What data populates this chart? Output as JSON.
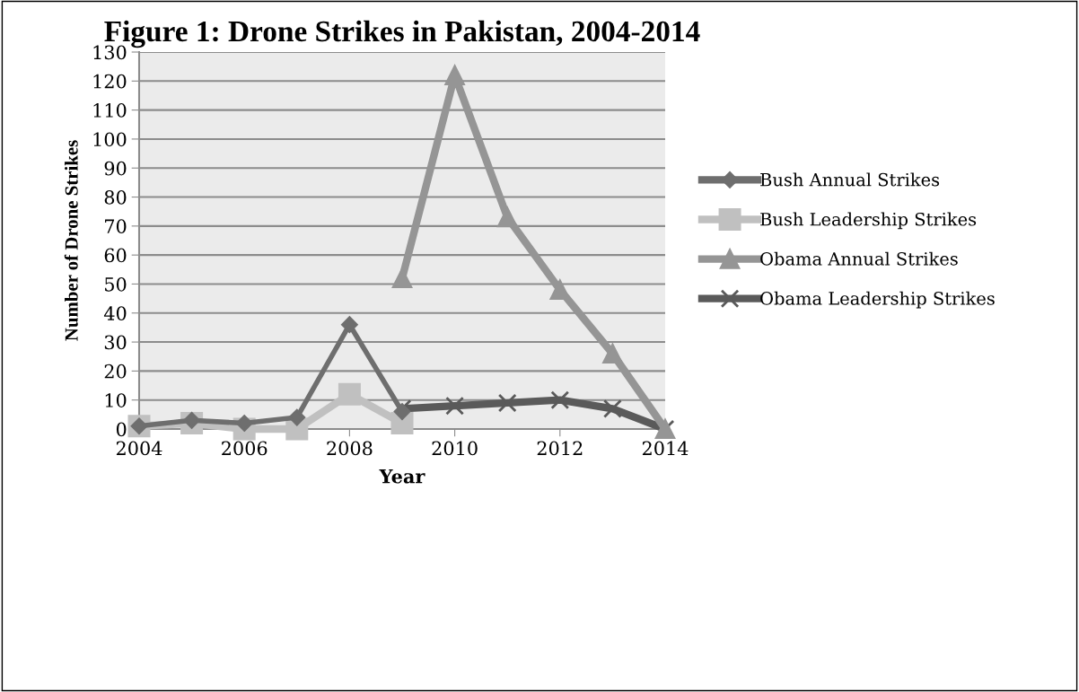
{
  "chart_data": {
    "type": "line",
    "title": "Figure 1: Drone Strikes in Pakistan, 2004-2014",
    "xlabel": "Year",
    "ylabel": "Number of Drone Strikes",
    "x": [
      2004,
      2005,
      2006,
      2007,
      2008,
      2009,
      2010,
      2011,
      2012,
      2013,
      2014
    ],
    "series": [
      {
        "name": "Bush Annual Strikes",
        "color": "#6e6e6e",
        "marker": "diamond",
        "values": [
          1,
          3,
          2,
          4,
          36,
          6,
          null,
          null,
          null,
          null,
          null
        ]
      },
      {
        "name": "Bush Leadership Strikes",
        "color": "#c0c0c0",
        "marker": "square",
        "values": [
          1,
          2,
          0,
          0,
          12,
          2,
          null,
          null,
          null,
          null,
          null
        ]
      },
      {
        "name": "Obama Annual Strikes",
        "color": "#959595",
        "marker": "triangle",
        "values": [
          null,
          null,
          null,
          null,
          null,
          52,
          122,
          73,
          48,
          26,
          0
        ]
      },
      {
        "name": "Obama Leadership Strikes",
        "color": "#5a5a5a",
        "marker": "cross",
        "values": [
          null,
          null,
          null,
          null,
          null,
          7,
          8,
          9,
          10,
          7,
          0
        ]
      }
    ],
    "xlim": [
      2004,
      2014
    ],
    "xticks": [
      2004,
      2006,
      2008,
      2010,
      2012,
      2014
    ],
    "ylim": [
      0,
      130
    ],
    "yticks": [
      0,
      10,
      20,
      30,
      40,
      50,
      60,
      70,
      80,
      90,
      100,
      110,
      120,
      130
    ],
    "grid": "y",
    "legend": "right"
  }
}
